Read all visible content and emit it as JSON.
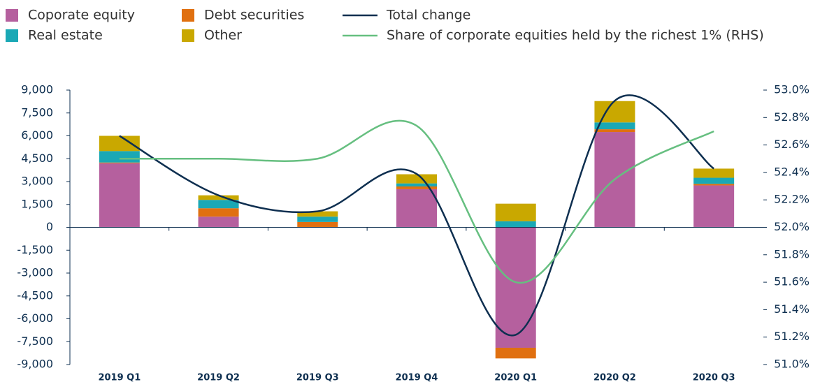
{
  "chart_data": {
    "type": "bar",
    "categories": [
      "2019 Q1",
      "2019 Q2",
      "2019 Q3",
      "2019 Q4",
      "2020 Q1",
      "2020 Q2",
      "2020 Q3"
    ],
    "series": [
      {
        "name": "Coporate equity",
        "color": "#b5609e",
        "values": [
          4200,
          700,
          0,
          2500,
          -7900,
          6250,
          2750
        ]
      },
      {
        "name": "Debt securities",
        "color": "#e07010",
        "values": [
          50,
          550,
          350,
          180,
          -700,
          180,
          100
        ]
      },
      {
        "name": "Real estate",
        "color": "#1aa8b5",
        "values": [
          750,
          550,
          350,
          200,
          400,
          450,
          400
        ]
      },
      {
        "name": "Other",
        "color": "#c9a800",
        "values": [
          1000,
          300,
          350,
          600,
          1150,
          1400,
          600
        ]
      },
      {
        "name": "Total change",
        "color": "#0e2f50",
        "type": "line",
        "values": [
          6000,
          2100,
          1050,
          3500,
          -7050,
          8300,
          3850
        ]
      },
      {
        "name": "Share of corporate equities held by the richest 1% (RHS)",
        "color": "#66bf80",
        "type": "line",
        "axis": "y2",
        "values": [
          52.5,
          52.5,
          52.5,
          52.74,
          51.6,
          52.35,
          52.7
        ]
      }
    ],
    "ylim": [
      -9000,
      9000
    ],
    "yticks": [
      {
        "value": -9000,
        "label": "-9,000"
      },
      {
        "value": -7500,
        "label": "-7,500"
      },
      {
        "value": -6000,
        "label": "-6,000"
      },
      {
        "value": -4500,
        "label": "-4,500"
      },
      {
        "value": -3000,
        "label": "-3,000"
      },
      {
        "value": -1500,
        "label": "-1,500"
      },
      0,
      {
        "value": 1500,
        "label": "1,500"
      },
      {
        "value": 3000,
        "label": "3,000"
      },
      {
        "value": 4500,
        "label": "4,500"
      },
      {
        "value": 6000,
        "label": "6,000"
      },
      {
        "value": 7500,
        "label": "7,500"
      },
      {
        "value": 9000,
        "label": "9,000"
      }
    ],
    "y2lim": [
      51.0,
      53.0
    ],
    "y2ticks": [
      {
        "value": 51.0,
        "label": "51.0%"
      },
      {
        "value": 51.2,
        "label": "51.2%"
      },
      {
        "value": 51.4,
        "label": "51.4%"
      },
      {
        "value": 51.6,
        "label": "51.6%"
      },
      {
        "value": 51.8,
        "label": "51.8%"
      },
      {
        "value": 52.0,
        "label": "52.0%"
      },
      {
        "value": 52.2,
        "label": "52.2%"
      },
      {
        "value": 52.4,
        "label": "52.4%"
      },
      {
        "value": 52.6,
        "label": "52.6%"
      },
      {
        "value": 52.8,
        "label": "52.8%"
      },
      {
        "value": 53.0,
        "label": "53.0%"
      }
    ],
    "grid": false,
    "legend": "top-left",
    "stacked": true
  }
}
